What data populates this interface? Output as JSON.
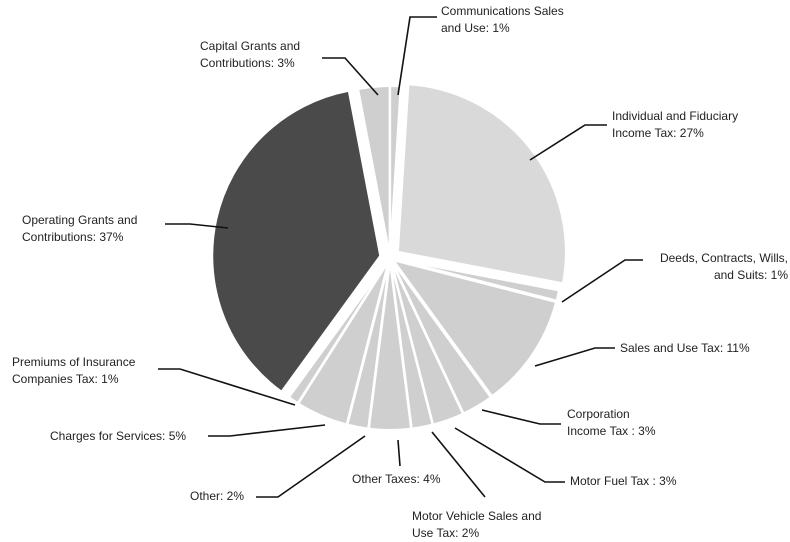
{
  "chart_data": {
    "type": "pie",
    "categories": [
      [
        "Communications Sales",
        "and Use: 1%"
      ],
      [
        "Individual and Fiduciary",
        "Income Tax: 27%"
      ],
      [
        "Deeds, Contracts, Wills,",
        "and Suits: 1%"
      ],
      [
        "Sales and Use Tax: 11%"
      ],
      [
        "Corporation",
        "Income Tax : 3%"
      ],
      [
        "Motor Fuel Tax : 3%"
      ],
      [
        "Motor Vehicle Sales and",
        "Use Tax: 2%"
      ],
      [
        "Other Taxes: 4%"
      ],
      [
        "Other: 2%"
      ],
      [
        "Charges for Services: 5%"
      ],
      [
        "Premiums of Insurance",
        "Companies Tax: 1%"
      ],
      [
        "Operating Grants and",
        "Contributions: 37%"
      ],
      [
        "Capital Grants and",
        "Contributions: 3%"
      ]
    ],
    "values": [
      1,
      27,
      1,
      11,
      3,
      3,
      2,
      4,
      2,
      5,
      1,
      37,
      3
    ],
    "colors": [
      "#cfcfcf",
      "#d9d9d9",
      "#cfcfcf",
      "#cfcfcf",
      "#cfcfcf",
      "#cfcfcf",
      "#cfcfcf",
      "#cfcfcf",
      "#cfcfcf",
      "#cfcfcf",
      "#cfcfcf",
      "#4a4a4a",
      "#cfcfcf"
    ]
  }
}
